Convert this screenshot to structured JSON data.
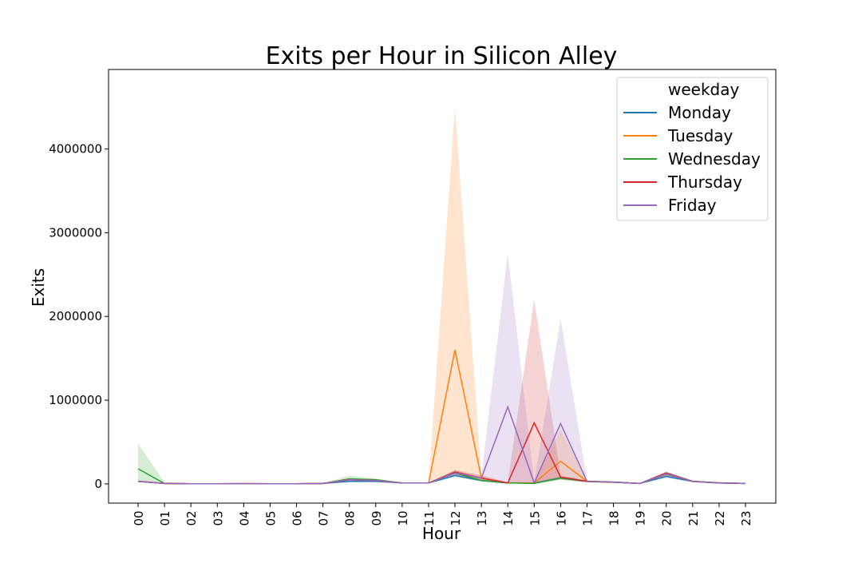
{
  "chart_data": {
    "type": "line",
    "title": "Exits per Hour in Silicon Alley",
    "xlabel": "Hour",
    "ylabel": "Exits",
    "categories": [
      "00",
      "01",
      "02",
      "03",
      "04",
      "05",
      "06",
      "07",
      "08",
      "09",
      "10",
      "11",
      "12",
      "13",
      "14",
      "15",
      "16",
      "17",
      "18",
      "19",
      "20",
      "21",
      "22",
      "23"
    ],
    "y_ticks": [
      "0",
      "1000000",
      "2000000",
      "3000000",
      "4000000"
    ],
    "ylim": [
      -230000,
      4950000
    ],
    "grid": false,
    "legend": {
      "title": "weekday",
      "placement": "top-right"
    },
    "series": [
      {
        "name": "Monday",
        "color": "#1f77b4",
        "values": [
          30000,
          5000,
          2000,
          1000,
          3000,
          2000,
          2000,
          5000,
          30000,
          30000,
          10000,
          10000,
          100000,
          40000,
          10000,
          10000,
          70000,
          30000,
          20000,
          5000,
          90000,
          30000,
          10000,
          5000
        ],
        "ci_low": [
          20000,
          2000,
          1000,
          500,
          2000,
          1000,
          1000,
          2000,
          20000,
          20000,
          5000,
          5000,
          80000,
          30000,
          5000,
          5000,
          50000,
          20000,
          10000,
          2000,
          70000,
          20000,
          5000,
          2000
        ],
        "ci_high": [
          40000,
          10000,
          4000,
          3000,
          6000,
          4000,
          4000,
          8000,
          45000,
          40000,
          15000,
          15000,
          120000,
          50000,
          20000,
          20000,
          90000,
          40000,
          30000,
          10000,
          110000,
          40000,
          20000,
          10000
        ]
      },
      {
        "name": "Tuesday",
        "color": "#ff7f0e",
        "values": [
          30000,
          5000,
          2000,
          1000,
          3000,
          2000,
          2000,
          5000,
          50000,
          40000,
          10000,
          10000,
          1600000,
          70000,
          10000,
          10000,
          270000,
          30000,
          20000,
          5000,
          120000,
          30000,
          10000,
          5000
        ],
        "ci_low": [
          20000,
          2000,
          1000,
          500,
          2000,
          1000,
          1000,
          2000,
          30000,
          30000,
          5000,
          5000,
          130000,
          40000,
          5000,
          5000,
          50000,
          20000,
          10000,
          2000,
          90000,
          20000,
          5000,
          2000
        ],
        "ci_high": [
          45000,
          10000,
          4000,
          3000,
          6000,
          4000,
          4000,
          8000,
          70000,
          55000,
          15000,
          15000,
          4500000,
          100000,
          20000,
          20000,
          650000,
          40000,
          30000,
          10000,
          140000,
          40000,
          20000,
          10000
        ]
      },
      {
        "name": "Wednesday",
        "color": "#2ca02c",
        "values": [
          180000,
          5000,
          2000,
          1000,
          3000,
          2000,
          2000,
          5000,
          60000,
          50000,
          10000,
          10000,
          130000,
          40000,
          10000,
          5000,
          70000,
          30000,
          20000,
          5000,
          120000,
          30000,
          10000,
          5000
        ],
        "ci_low": [
          30000,
          2000,
          1000,
          500,
          2000,
          1000,
          1000,
          2000,
          40000,
          40000,
          5000,
          5000,
          100000,
          30000,
          5000,
          2000,
          50000,
          20000,
          10000,
          2000,
          90000,
          20000,
          5000,
          2000
        ],
        "ci_high": [
          480000,
          20000,
          4000,
          3000,
          6000,
          4000,
          4000,
          8000,
          100000,
          60000,
          15000,
          15000,
          160000,
          60000,
          20000,
          10000,
          90000,
          40000,
          30000,
          10000,
          140000,
          40000,
          20000,
          10000
        ]
      },
      {
        "name": "Thursday",
        "color": "#d62728",
        "values": [
          30000,
          5000,
          2000,
          1000,
          3000,
          2000,
          2000,
          5000,
          50000,
          40000,
          10000,
          10000,
          140000,
          70000,
          10000,
          730000,
          80000,
          30000,
          20000,
          5000,
          130000,
          30000,
          10000,
          5000
        ],
        "ci_low": [
          20000,
          2000,
          1000,
          500,
          2000,
          1000,
          1000,
          2000,
          30000,
          30000,
          5000,
          5000,
          110000,
          40000,
          5000,
          5000,
          60000,
          20000,
          10000,
          2000,
          100000,
          20000,
          5000,
          2000
        ],
        "ci_high": [
          40000,
          10000,
          4000,
          3000,
          6000,
          4000,
          4000,
          8000,
          65000,
          50000,
          15000,
          15000,
          170000,
          100000,
          20000,
          2200000,
          100000,
          40000,
          30000,
          10000,
          150000,
          40000,
          20000,
          10000
        ]
      },
      {
        "name": "Friday",
        "color": "#9467bd",
        "values": [
          30000,
          5000,
          2000,
          1000,
          3000,
          2000,
          2000,
          5000,
          50000,
          40000,
          10000,
          10000,
          130000,
          70000,
          920000,
          10000,
          720000,
          30000,
          20000,
          5000,
          120000,
          30000,
          10000,
          5000
        ],
        "ci_low": [
          20000,
          2000,
          1000,
          500,
          2000,
          1000,
          1000,
          2000,
          30000,
          30000,
          5000,
          5000,
          100000,
          40000,
          10000,
          5000,
          60000,
          20000,
          10000,
          2000,
          90000,
          20000,
          5000,
          2000
        ],
        "ci_high": [
          40000,
          10000,
          4000,
          3000,
          6000,
          4000,
          4000,
          8000,
          65000,
          50000,
          15000,
          15000,
          160000,
          100000,
          2750000,
          20000,
          1970000,
          40000,
          30000,
          10000,
          140000,
          40000,
          20000,
          10000
        ]
      }
    ]
  }
}
